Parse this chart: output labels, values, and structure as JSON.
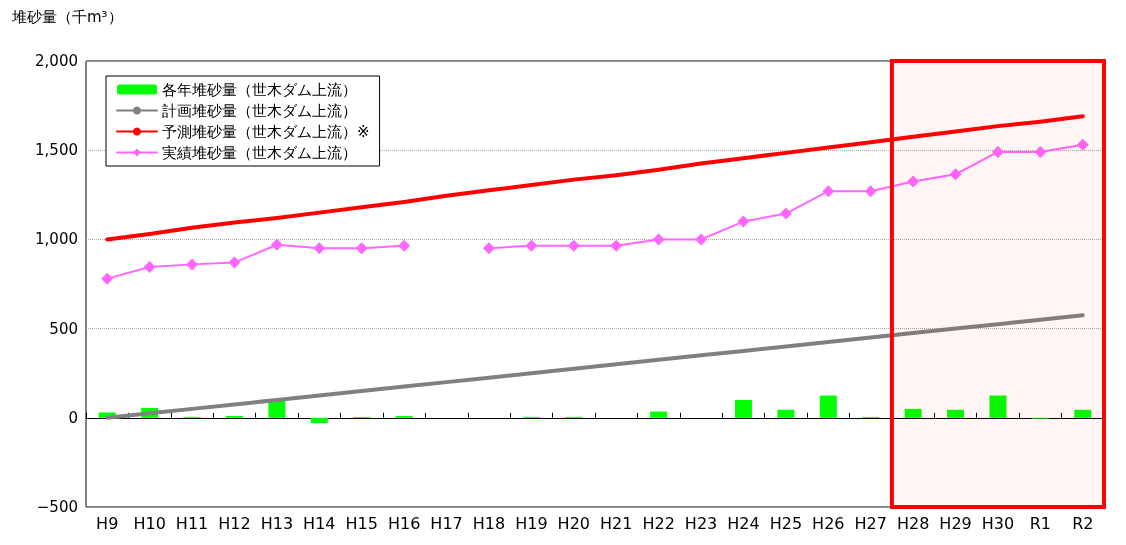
{
  "chart_data": {
    "type": "bar",
    "ylabel": "堆砂量（千m³）",
    "categories": [
      "H9",
      "H10",
      "H11",
      "H12",
      "H13",
      "H14",
      "H15",
      "H16",
      "H17",
      "H18",
      "H19",
      "H20",
      "H21",
      "H22",
      "H23",
      "H24",
      "H25",
      "H26",
      "H27",
      "H28",
      "H29",
      "H30",
      "R1",
      "R2"
    ],
    "series": [
      {
        "name": "各年堆砂量（世木ダム上流）",
        "type": "bar",
        "color": "#00ff00",
        "values": [
          30,
          55,
          5,
          10,
          95,
          -30,
          5,
          10,
          null,
          null,
          5,
          5,
          null,
          35,
          null,
          100,
          45,
          125,
          5,
          50,
          45,
          125,
          -5,
          45
        ]
      },
      {
        "name": "計画堆砂量（世木ダム上流）",
        "type": "line",
        "color": "#808080",
        "marker": "none",
        "values": [
          0,
          25,
          50,
          75,
          100,
          125,
          150,
          175,
          200,
          225,
          250,
          275,
          300,
          325,
          350,
          375,
          400,
          425,
          450,
          475,
          500,
          525,
          550,
          575
        ]
      },
      {
        "name": "予測堆砂量（世木ダム上流）※",
        "type": "line",
        "color": "#ff0000",
        "marker": "none",
        "values": [
          1000,
          1030,
          1065,
          1095,
          1120,
          1150,
          1180,
          1210,
          1245,
          1275,
          1305,
          1335,
          1360,
          1390,
          1425,
          1455,
          1485,
          1515,
          1545,
          1575,
          1605,
          1635,
          1660,
          1690
        ]
      },
      {
        "name": "実績堆砂量（世木ダム上流）",
        "type": "line",
        "color": "#ff66ff",
        "marker": "diamond",
        "values": [
          780,
          845,
          860,
          870,
          970,
          950,
          950,
          965,
          null,
          950,
          965,
          965,
          965,
          1000,
          1000,
          1100,
          1145,
          1270,
          1270,
          1325,
          1365,
          1490,
          1490,
          1530
        ]
      }
    ],
    "ylim": [
      -500,
      2000
    ],
    "yticks": [
      {
        "value": -500,
        "label": "−500"
      },
      0,
      500,
      {
        "value": 1000,
        "label": "1,000"
      },
      {
        "value": 1500,
        "label": "1,500"
      },
      {
        "value": 2000,
        "label": "2,000"
      }
    ],
    "bands": [
      {
        "axis": "x",
        "from": "H28",
        "to": "R2",
        "color": "#ff0000"
      }
    ],
    "grid": "y",
    "legend": "top left"
  }
}
